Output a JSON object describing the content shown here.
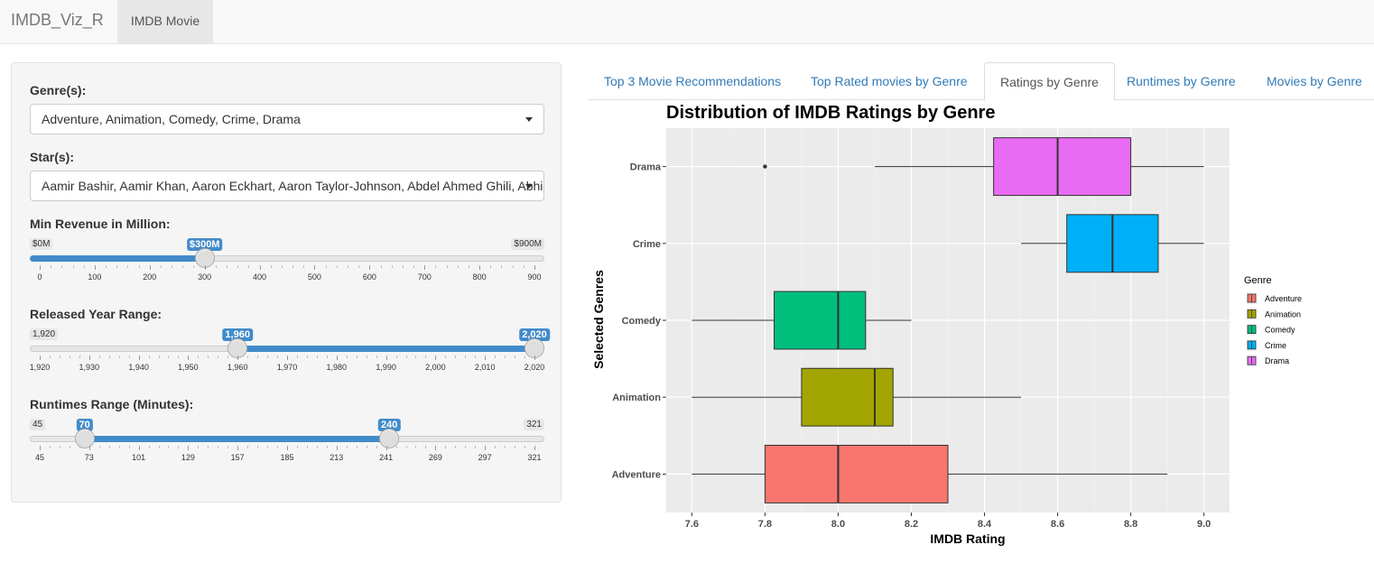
{
  "navbar": {
    "brand": "IMDB_Viz_R",
    "tab": "IMDB Movie"
  },
  "sidebar": {
    "genre": {
      "label": "Genre(s):",
      "value": "Adventure, Animation, Comedy, Crime, Drama"
    },
    "star": {
      "label": "Star(s):",
      "value": "Aamir Bashir, Aamir Khan, Aaron Eckhart, Aaron Taylor-Johnson, Abdel Ahmed Ghili, Abhishek Bachchan"
    },
    "revenue": {
      "label": "Min Revenue in Million:",
      "min_label": "$0M",
      "max_label": "$900M",
      "value_label": "$300M",
      "min": 0,
      "max": 900,
      "value": 300,
      "ticks": [
        "0",
        "100",
        "200",
        "300",
        "400",
        "500",
        "600",
        "700",
        "800",
        "900"
      ]
    },
    "year": {
      "label": "Released Year Range:",
      "min_label": "1,920",
      "from_label": "1,960",
      "to_label": "2,020",
      "min": 1920,
      "max": 2020,
      "from": 1960,
      "to": 2020,
      "ticks": [
        "1,920",
        "1,930",
        "1,940",
        "1,950",
        "1,960",
        "1,970",
        "1,980",
        "1,990",
        "2,000",
        "2,010",
        "2,020"
      ]
    },
    "runtime": {
      "label": "Runtimes Range (Minutes):",
      "min_label": "45",
      "max_label": "321",
      "from_label": "70",
      "to_label": "240",
      "min": 45,
      "max": 321,
      "from": 70,
      "to": 240,
      "ticks": [
        "45",
        "73",
        "101",
        "129",
        "157",
        "185",
        "213",
        "241",
        "269",
        "297",
        "321"
      ]
    }
  },
  "tabs": [
    "Top 3 Movie Recommendations",
    "Top Rated movies by Genre",
    "Ratings by Genre",
    "Runtimes by Genre",
    "Movies by Genre"
  ],
  "active_tab": 2,
  "chart_data": {
    "type": "boxplot",
    "title": "Distribution of IMDB Ratings by Genre",
    "xlabel": "IMDB Rating",
    "ylabel": "Selected Genres",
    "xlim": [
      7.53,
      9.07
    ],
    "xticks": [
      7.6,
      7.8,
      8.0,
      8.2,
      8.4,
      8.6,
      8.8,
      9.0
    ],
    "xtick_labels": [
      "7.6",
      "7.8",
      "8.0",
      "8.2",
      "8.4",
      "8.6",
      "8.8",
      "9.0"
    ],
    "legend_title": "Genre",
    "series": [
      {
        "name": "Adventure",
        "color": "#F8766D",
        "whisker_low": 7.6,
        "q1": 7.8,
        "median": 8.0,
        "q3": 8.3,
        "whisker_high": 8.9,
        "outliers": []
      },
      {
        "name": "Animation",
        "color": "#A3A500",
        "whisker_low": 7.6,
        "q1": 7.9,
        "median": 8.1,
        "q3": 8.15,
        "whisker_high": 8.5,
        "outliers": []
      },
      {
        "name": "Comedy",
        "color": "#00BF7D",
        "whisker_low": 7.6,
        "q1": 7.825,
        "median": 8.0,
        "q3": 8.075,
        "whisker_high": 8.2,
        "outliers": []
      },
      {
        "name": "Crime",
        "color": "#00B0F6",
        "whisker_low": 8.5,
        "q1": 8.625,
        "median": 8.75,
        "q3": 8.875,
        "whisker_high": 9.0,
        "outliers": []
      },
      {
        "name": "Drama",
        "color": "#E76BF3",
        "whisker_low": 8.1,
        "q1": 8.425,
        "median": 8.6,
        "q3": 8.8,
        "whisker_high": 9.0,
        "outliers": [
          7.8
        ]
      }
    ]
  }
}
